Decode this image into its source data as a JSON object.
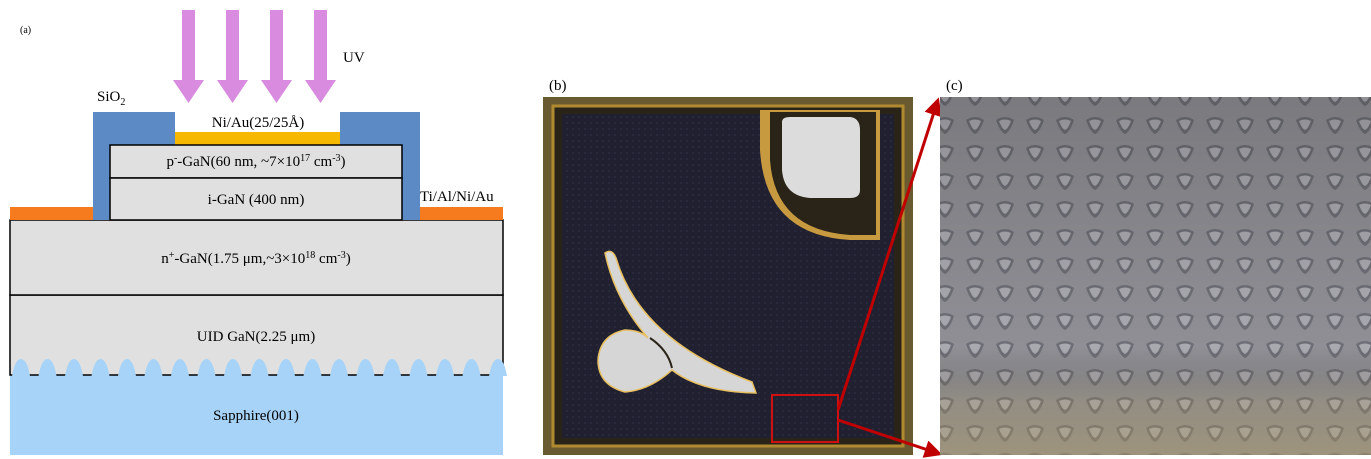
{
  "panel_a": {
    "label": "(a)",
    "uv": "UV",
    "sio2": [
      "SiO",
      "2"
    ],
    "metal_top": "Ni/Au(25/25Å)",
    "p_gan": [
      "p",
      "-",
      "-GaN(60 nm, ~7×10",
      "17",
      " cm",
      "-3",
      ")"
    ],
    "i_gan": "i-GaN (400 nm)",
    "contact": "Ti/Al/Ni/Au",
    "n_gan": [
      "n",
      "+",
      "-GaN(1.75 μm,~3×10",
      "18",
      " cm",
      "-3",
      ")"
    ],
    "uid_gan": "UID GaN(2.25 μm)",
    "substrate": "Sapphire(001)"
  },
  "panel_b": {
    "label": "(b)"
  },
  "panel_c": {
    "label": "(c)"
  }
}
